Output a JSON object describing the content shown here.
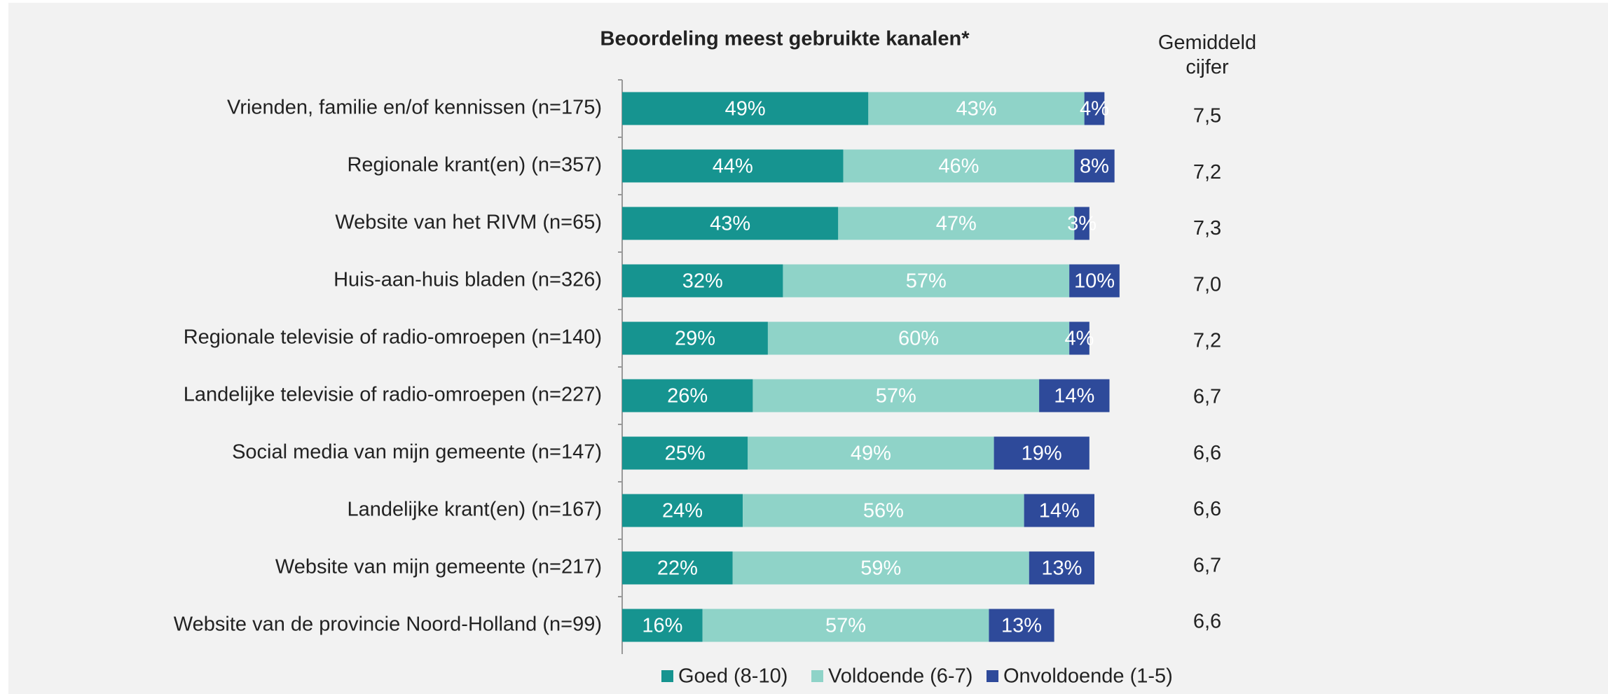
{
  "chart_data": {
    "type": "stacked-barh",
    "title": "Beoordeling meest gebruikte kanalen*",
    "categories": [
      "Vrienden, familie en/of kennissen (n=175)",
      "Regionale krant(en) (n=357)",
      "Website van het RIVM (n=65)",
      "Huis-aan-huis bladen (n=326)",
      "Regionale televisie of radio-omroepen (n=140)",
      "Landelijke televisie of radio-omroepen (n=227)",
      "Social media van mijn gemeente (n=147)",
      "Landelijke krant(en) (n=167)",
      "Website van mijn gemeente (n=217)",
      "Website van de provincie Noord-Holland (n=99)"
    ],
    "series": [
      {
        "name": "Goed (8-10)",
        "color": "#169490",
        "values": [
          49,
          44,
          43,
          32,
          29,
          26,
          25,
          24,
          22,
          16
        ],
        "value_labels": [
          "49%",
          "44%",
          "43%",
          "32%",
          "29%",
          "26%",
          "25%",
          "24%",
          "22%",
          "16%"
        ]
      },
      {
        "name": "Voldoende (6-7)",
        "color": "#8fd3c8",
        "values": [
          43,
          46,
          47,
          57,
          60,
          57,
          49,
          56,
          59,
          57
        ],
        "value_labels": [
          "43%",
          "46%",
          "47%",
          "57%",
          "60%",
          "57%",
          "49%",
          "56%",
          "59%",
          "57%"
        ]
      },
      {
        "name": "Onvoldoende (1-5)",
        "color": "#2e4a9a",
        "values": [
          4,
          8,
          3,
          10,
          4,
          14,
          19,
          14,
          13,
          13
        ],
        "value_labels": [
          "4%",
          "8%",
          "3%",
          "10%",
          "4%",
          "14%",
          "19%",
          "14%",
          "13%",
          "13%"
        ]
      }
    ],
    "xlim": [
      0,
      100
    ],
    "legend": "bottom",
    "mean": {
      "title": "Gemiddeld cijfer",
      "values": [
        7.5,
        7.2,
        7.3,
        7.0,
        7.2,
        6.7,
        6.6,
        6.6,
        6.7,
        6.6
      ],
      "value_labels": [
        "7,5",
        "7,2",
        "7,3",
        "7,0",
        "7,2",
        "6,7",
        "6,6",
        "6,6",
        "6,7",
        "6,6"
      ]
    }
  }
}
